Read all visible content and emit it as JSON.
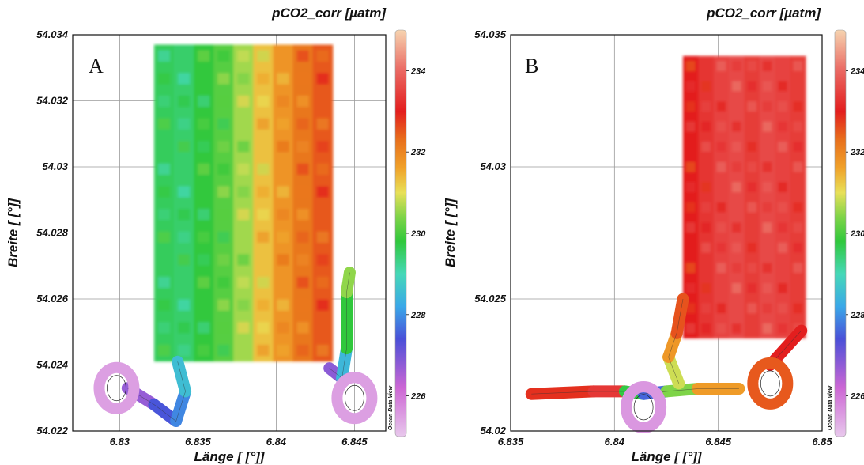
{
  "chart_data": [
    {
      "type": "heatmap",
      "panel_label": "A",
      "title": "pCO2_corr [µatm]",
      "xlabel": "Länge [ [°]]",
      "ylabel": "Breite [ [°]]",
      "xlim": [
        6.827,
        6.847
      ],
      "ylim": [
        54.022,
        54.034
      ],
      "x_ticks": [
        "6.83",
        "6.835",
        "6.84",
        "6.845"
      ],
      "y_ticks": [
        "54.022",
        "54.024",
        "54.026",
        "54.028",
        "54.03",
        "54.032",
        "54.034"
      ],
      "colorbar": {
        "range": [
          225,
          235
        ],
        "ticks": [
          "226",
          "228",
          "230",
          "232",
          "234"
        ],
        "credit": "Ocean Data View"
      },
      "survey_area": {
        "x_range": [
          6.8322,
          6.8436
        ],
        "y_range": [
          54.0241,
          54.0337
        ],
        "gradient": "west-to-east",
        "values_west_to_east": [
          229.6,
          229.5,
          229.8,
          230.1,
          230.6,
          231.3,
          231.8,
          232.2,
          232.5
        ]
      },
      "tracks": [
        {
          "points": [
            [
              6.8305,
              54.0233
            ],
            [
              6.8322,
              54.0228
            ],
            [
              6.8336,
              54.0223
            ],
            [
              6.8342,
              54.0232
            ],
            [
              6.8337,
              54.0241
            ]
          ],
          "values": [
            226.2,
            227.2,
            227.7,
            228.1,
            229.0
          ]
        },
        {
          "points": [
            [
              6.8434,
              54.0239
            ],
            [
              6.8442,
              54.0236
            ],
            [
              6.8445,
              54.0245
            ],
            [
              6.8445,
              54.0262
            ],
            [
              6.8447,
              54.0268
            ]
          ],
          "values": [
            226.2,
            227.4,
            229.5,
            230.1,
            230.9
          ]
        }
      ],
      "circles": [
        {
          "center": [
            6.8298,
            54.0233
          ],
          "value": 225.5
        },
        {
          "center": [
            6.845,
            54.023
          ],
          "value": 225.5
        }
      ]
    },
    {
      "type": "heatmap",
      "panel_label": "B",
      "title": "pCO2_corr [µatm]",
      "xlabel": "Länge [ [°]]",
      "ylabel": "Breite [ [°]]",
      "xlim": [
        6.835,
        6.85
      ],
      "ylim": [
        54.02,
        54.035
      ],
      "x_ticks": [
        "6.835",
        "6.84",
        "6.845",
        "6.85"
      ],
      "y_ticks": [
        "54.02",
        "54.025",
        "54.03",
        "54.035"
      ],
      "colorbar": {
        "range": [
          225,
          235
        ],
        "ticks": [
          "226",
          "228",
          "230",
          "232",
          "234"
        ],
        "credit": "Ocean Data View"
      },
      "survey_area": {
        "x_range": [
          6.8433,
          6.8492
        ],
        "y_range": [
          54.0235,
          54.0342
        ],
        "gradient": "uniform",
        "values_west_to_east": [
          233.0,
          233.3,
          233.5,
          233.6,
          233.4,
          233.6,
          233.5,
          233.4
        ]
      },
      "tracks": [
        {
          "points": [
            [
              6.836,
              54.0214
            ],
            [
              6.839,
              54.0215
            ],
            [
              6.8405,
              54.0215
            ],
            [
              6.8414,
              54.0214
            ],
            [
              6.8425,
              54.0215
            ],
            [
              6.844,
              54.0216
            ],
            [
              6.846,
              54.0216
            ]
          ],
          "values": [
            232.5,
            233.2,
            233.5,
            226.0,
            229.2,
            231.6,
            231.8
          ]
        },
        {
          "points": [
            [
              6.8431,
              54.0218
            ],
            [
              6.8426,
              54.0228
            ],
            [
              6.843,
              54.0237
            ],
            [
              6.8433,
              54.025
            ]
          ],
          "values": [
            230.5,
            231.2,
            232.3,
            232.8
          ]
        },
        {
          "points": [
            [
              6.8475,
              54.0225
            ],
            [
              6.849,
              54.0238
            ]
          ],
          "values": [
            232.8,
            233.2
          ]
        }
      ],
      "circles": [
        {
          "center": [
            6.8414,
            54.0209
          ],
          "value": 225.6
        },
        {
          "center": [
            6.8475,
            54.0218
          ],
          "value": 232.5
        }
      ]
    }
  ]
}
